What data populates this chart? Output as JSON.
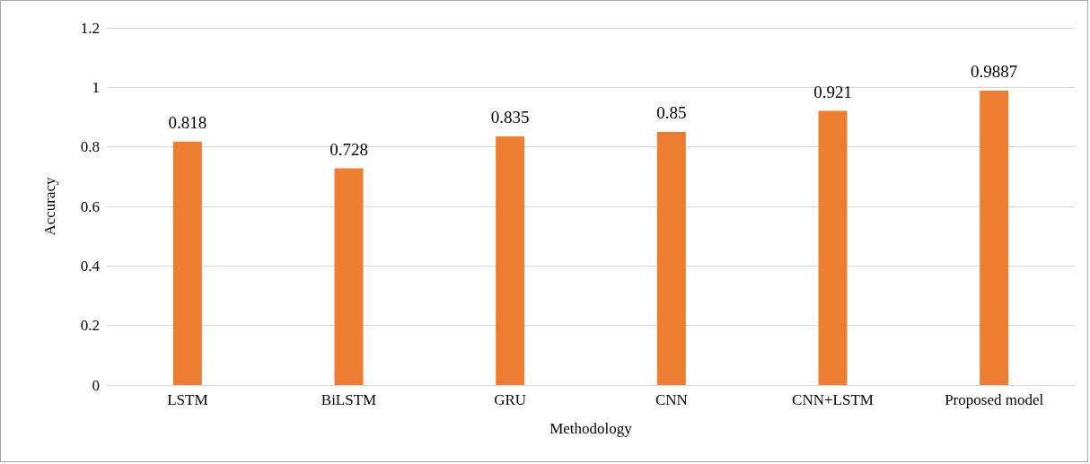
{
  "chart_data": {
    "type": "bar",
    "xlabel": "Methodology",
    "ylabel": "Accuracy",
    "categories": [
      "LSTM",
      "BiLSTM",
      "GRU",
      "CNN",
      "CNN+LSTM",
      "Proposed model"
    ],
    "values": [
      0.818,
      0.728,
      0.835,
      0.85,
      0.921,
      0.9887
    ],
    "color": "#ed7d31",
    "ylim": [
      0,
      1.2
    ],
    "yticks": [
      0,
      0.2,
      0.4,
      0.6,
      0.8,
      1,
      1.2
    ],
    "grid": "y",
    "data_labels": true
  }
}
